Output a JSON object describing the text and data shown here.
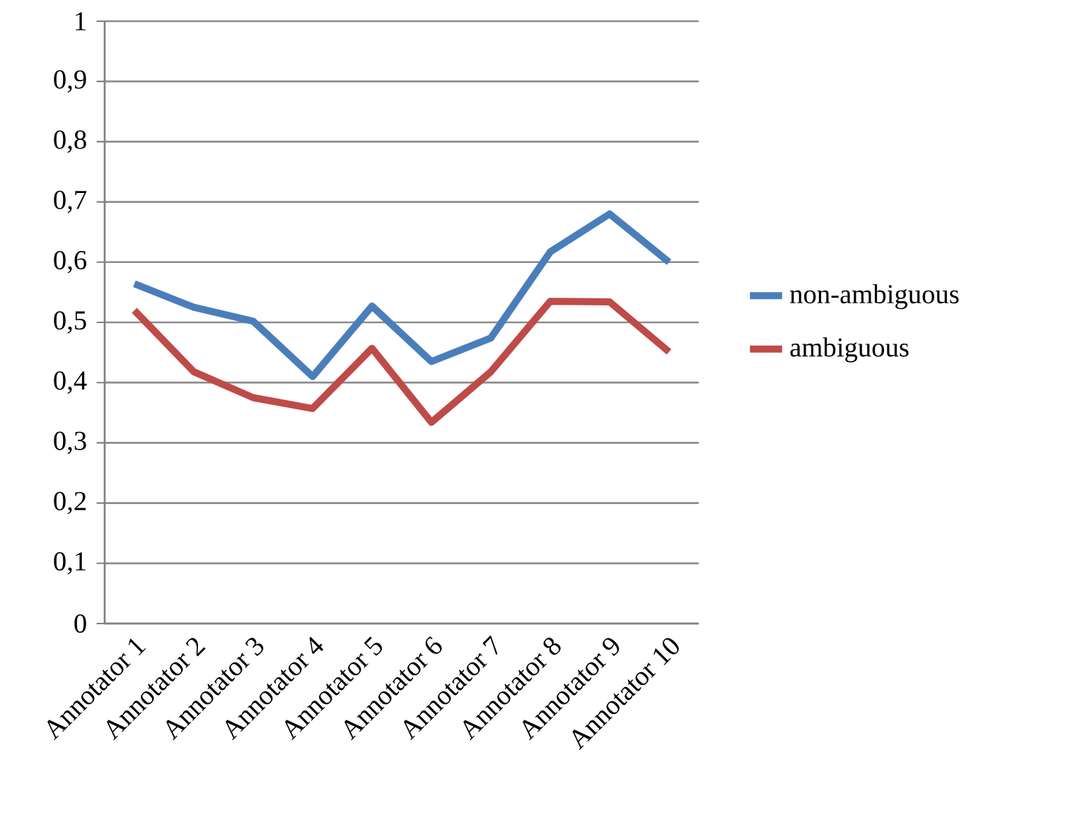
{
  "chart_data": {
    "type": "line",
    "categories": [
      "Annotator 1",
      "Annotator 2",
      "Annotator 3",
      "Annotator 4",
      "Annotator 5",
      "Annotator 6",
      "Annotator 7",
      "Annotator 8",
      "Annotator 9",
      "Annotator 10"
    ],
    "series": [
      {
        "name": "non-ambiguous",
        "color": "#4a7ebb",
        "values": [
          0.564,
          0.525,
          0.502,
          0.41,
          0.527,
          0.435,
          0.474,
          0.617,
          0.68,
          0.6
        ]
      },
      {
        "name": "ambiguous",
        "color": "#be4b48",
        "values": [
          0.52,
          0.418,
          0.375,
          0.357,
          0.457,
          0.334,
          0.418,
          0.535,
          0.534,
          0.451
        ]
      }
    ],
    "ylim": [
      0,
      1
    ],
    "yticks": [
      0,
      {
        "value": 0.1,
        "label": "0,1"
      },
      {
        "value": 0.2,
        "label": "0,2"
      },
      {
        "value": 0.3,
        "label": "0,3"
      },
      {
        "value": 0.4,
        "label": "0,4"
      },
      {
        "value": 0.5,
        "label": "0,5"
      },
      {
        "value": 0.6,
        "label": "0,6"
      },
      {
        "value": 0.7,
        "label": "0,7"
      },
      {
        "value": 0.8,
        "label": "0,8"
      },
      {
        "value": 0.9,
        "label": "0,9"
      },
      1
    ],
    "grid": "y",
    "legend": "right"
  }
}
